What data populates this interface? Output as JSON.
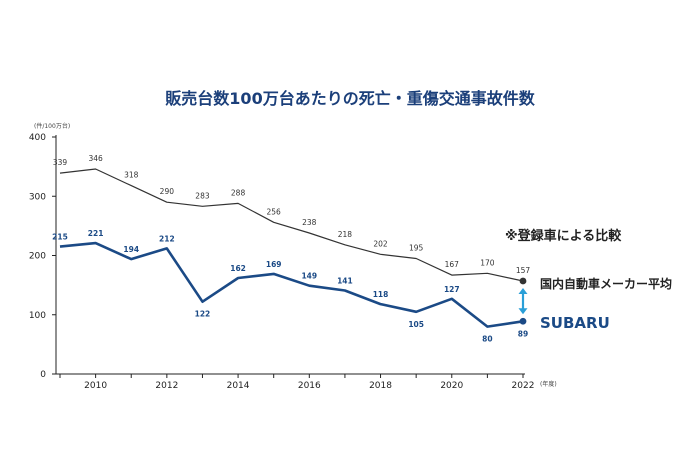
{
  "chart_data": {
    "type": "line",
    "title": "販売台数100万台あたりの死亡・重傷交通事故件数",
    "ylabel": "(件/100万台)",
    "xlabel": "(年度)",
    "ylim": [
      0,
      400
    ],
    "yticks": [
      0,
      100,
      200,
      300,
      400
    ],
    "xlim": [
      2009,
      2022
    ],
    "xticks": [
      2010,
      2012,
      2014,
      2016,
      2018,
      2020,
      2022
    ],
    "note": "※登録車による比較",
    "series": [
      {
        "name": "国内自動車メーカー平均",
        "color": "#333333",
        "x": [
          2009,
          2010,
          2011,
          2012,
          2013,
          2014,
          2015,
          2016,
          2017,
          2018,
          2019,
          2020,
          2021,
          2022
        ],
        "values": [
          339,
          346,
          318,
          290,
          283,
          288,
          256,
          238,
          218,
          202,
          195,
          167,
          170,
          157
        ]
      },
      {
        "name": "SUBARU",
        "color": "#1b4a86",
        "x": [
          2009,
          2010,
          2011,
          2012,
          2013,
          2014,
          2015,
          2016,
          2017,
          2018,
          2019,
          2020,
          2021,
          2022
        ],
        "values": [
          215,
          221,
          194,
          212,
          122,
          162,
          169,
          149,
          141,
          118,
          105,
          127,
          80,
          89
        ]
      }
    ],
    "arrow_color": "#2a9fd8"
  }
}
